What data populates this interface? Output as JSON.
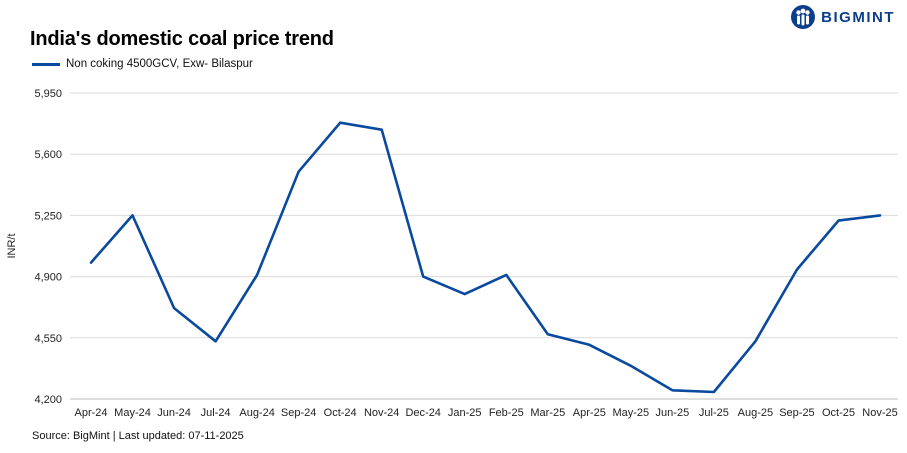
{
  "brand": {
    "name": "BIGMINT",
    "icon": "people-logo-icon",
    "color": "#0d3e8a"
  },
  "footer": {
    "source": "Source: BigMint | Last updated: 07-11-2025"
  },
  "chart_data": {
    "type": "line",
    "title": "India's domestic coal price trend",
    "xlabel": "",
    "ylabel": "INR/t",
    "categories": [
      "Apr-24",
      "May-24",
      "Jun-24",
      "Jul-24",
      "Aug-24",
      "Sep-24",
      "Oct-24",
      "Nov-24",
      "Dec-24",
      "Jan-25",
      "Feb-25",
      "Mar-25",
      "Apr-25",
      "May-25",
      "Jun-25",
      "Jul-25",
      "Aug-25",
      "Sep-25",
      "Oct-25",
      "Nov-25"
    ],
    "series": [
      {
        "name": "Non coking 4500GCV, Exw- Bilaspur",
        "color": "#0a4a9e",
        "values": [
          4980,
          5250,
          4720,
          4530,
          4910,
          5500,
          5780,
          5740,
          4900,
          4800,
          4910,
          4570,
          4510,
          4390,
          4250,
          4240,
          4530,
          4940,
          5220,
          5250
        ]
      }
    ],
    "ylim": [
      4200,
      5950
    ],
    "yticks": [
      "5,950",
      "5,600",
      "5,250",
      "4,900",
      "4,550",
      "4,200"
    ],
    "grid": true,
    "legend_position": "top-left"
  }
}
